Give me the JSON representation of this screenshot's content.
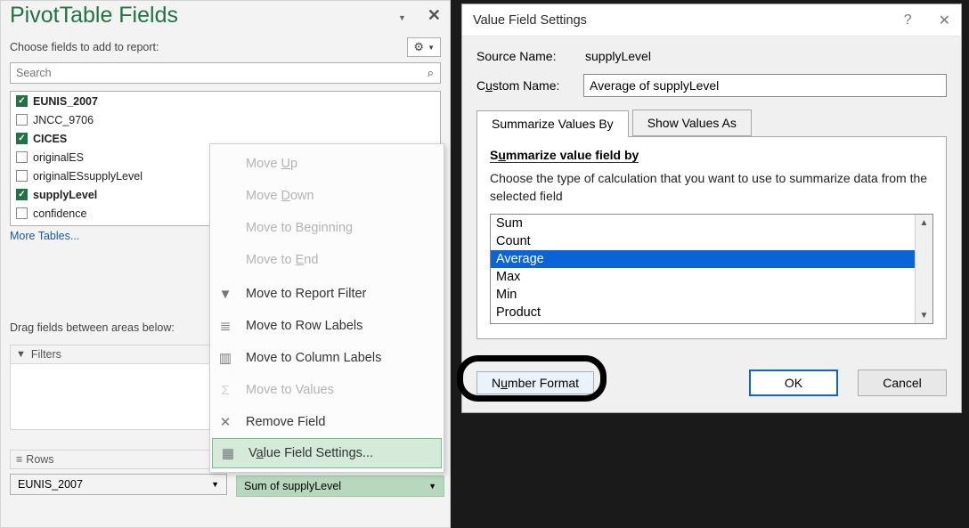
{
  "left": {
    "title": "PivotTable Fields",
    "subtitle": "Choose fields to add to report:",
    "search_placeholder": "Search",
    "fields": [
      {
        "label": "EUNIS_2007",
        "checked": true,
        "bold": true
      },
      {
        "label": "JNCC_9706",
        "checked": false,
        "bold": false
      },
      {
        "label": "CICES",
        "checked": true,
        "bold": true
      },
      {
        "label": "originalES",
        "checked": false,
        "bold": false
      },
      {
        "label": "originalESsupplyLevel",
        "checked": false,
        "bold": false
      },
      {
        "label": "supplyLevel",
        "checked": true,
        "bold": true
      },
      {
        "label": "confidence",
        "checked": false,
        "bold": false
      }
    ],
    "more_tables": "More Tables...",
    "drag_label": "Drag fields between areas below:",
    "filters_header": "Filters",
    "rows_header": "Rows",
    "rows_pill": "EUNIS_2007",
    "values_pill": "Sum of supplyLevel"
  },
  "ctx": {
    "items": [
      {
        "label_pre": "Move ",
        "u": "U",
        "label_post": "p",
        "disabled": true,
        "icon": ""
      },
      {
        "label_pre": "Move ",
        "u": "D",
        "label_post": "own",
        "disabled": true,
        "icon": ""
      },
      {
        "label_pre": "Move to Be",
        "u": "g",
        "label_post": "inning",
        "disabled": true,
        "icon": ""
      },
      {
        "label_pre": "Move to ",
        "u": "E",
        "label_post": "nd",
        "disabled": true,
        "icon": ""
      },
      {
        "label_pre": "Move to Report Filter",
        "u": "",
        "label_post": "",
        "disabled": false,
        "icon": "▼"
      },
      {
        "label_pre": "Move to Row Labels",
        "u": "",
        "label_post": "",
        "disabled": false,
        "icon": "≣"
      },
      {
        "label_pre": "Move to Column Labels",
        "u": "",
        "label_post": "",
        "disabled": false,
        "icon": "▥"
      },
      {
        "label_pre": "Move to Values",
        "u": "",
        "label_post": "",
        "disabled": true,
        "icon": "Σ"
      },
      {
        "label_pre": "Remove Field",
        "u": "",
        "label_post": "",
        "disabled": false,
        "icon": "✕"
      },
      {
        "label_pre": "V",
        "u": "a",
        "label_post": "lue Field Settings...",
        "disabled": false,
        "icon": "▦",
        "highlight": true
      }
    ]
  },
  "dlg": {
    "title": "Value Field Settings",
    "source_label": "Source Name:",
    "source_value": "supplyLevel",
    "custom_label_pre": "C",
    "custom_label_u": "u",
    "custom_label_post": "stom Name:",
    "custom_value": "Average of supplyLevel",
    "tab1": "Summarize Values By",
    "tab2": "Show Values As",
    "sum_heading_pre": "S",
    "sum_heading_u": "u",
    "sum_heading_post": "mmarize value field by",
    "sum_help": "Choose the type of calculation that you want to use to summarize data from the selected field",
    "options": [
      "Sum",
      "Count",
      "Average",
      "Max",
      "Min",
      "Product"
    ],
    "selected_index": 2,
    "nf_pre": "N",
    "nf_u": "u",
    "nf_post": "mber Format",
    "ok": "OK",
    "cancel": "Cancel"
  }
}
